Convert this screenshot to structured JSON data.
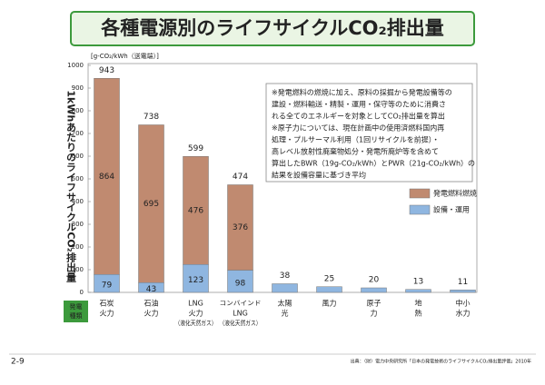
{
  "chart_data": {
    "type": "stacked-bar",
    "title": "各種電源別のライフサイクルCO₂排出量",
    "unit_label": "[g-CO₂/kWh（送電端）]",
    "y_label": "1kWhあたりのライフサイクルCO₂排出量",
    "categories": [
      [
        "石炭",
        "火力"
      ],
      [
        "石油",
        "火力"
      ],
      [
        "LNG",
        "火力",
        "（液化天然ガス）"
      ],
      [
        "コンバインド",
        "LNG",
        "（液化天然ガス）"
      ],
      [
        "太陽",
        "光"
      ],
      [
        "風力"
      ],
      [
        "原子",
        "力"
      ],
      [
        "地",
        "熱"
      ],
      [
        "中小",
        "水力"
      ]
    ],
    "series": [
      {
        "name": "設備・運用",
        "color": "#8fb6e0",
        "values": [
          79,
          43,
          123,
          98,
          38,
          25,
          20,
          13,
          11
        ]
      },
      {
        "name": "発電燃料燃焼",
        "color": "#c08a70",
        "values": [
          864,
          695,
          476,
          376,
          null,
          null,
          null,
          null,
          null
        ]
      }
    ],
    "totals": [
      943,
      738,
      599,
      474,
      38,
      25,
      20,
      13,
      11
    ],
    "ylim": [
      0,
      1000
    ],
    "yticks": [
      0,
      100,
      200,
      300,
      400,
      500,
      600,
      700,
      800,
      900,
      1000
    ],
    "category_axis_label": [
      "発電",
      "種類"
    ],
    "notes": [
      "※発電燃料の燃焼に加え、原料の採掘から発電設備等の",
      "建設・燃料輸送・精製・運用・保守等のために消費さ",
      "れる全てのエネルギーを対象としてCO₂排出量を算出",
      "※原子力については、現在計画中の使用済燃料国内再",
      "処理・プルサーマル利用（1回リサイクルを前提）・",
      "高レベル放射性廃棄物処分・発電所廃炉等を含めて",
      "算出したBWR（19g-CO₂/kWh）とPWR（21g-CO₂/kWh）の",
      "結果を設備容量に基づき平均"
    ],
    "page_number": "2-9",
    "source": "出典：（財）電力中央研究所「日本の発電技術のライフサイクルCO₂排出量評価」2010年"
  }
}
